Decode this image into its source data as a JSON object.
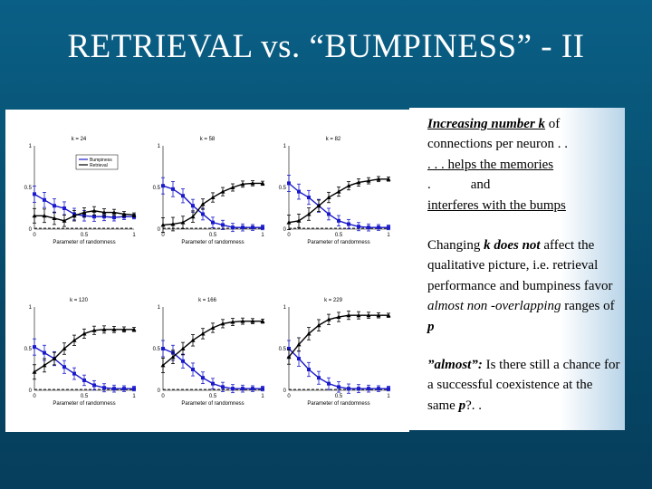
{
  "title": "RETRIEVAL vs. “BUMPINESS” - II",
  "text_panel": {
    "p1": {
      "k_line_bi": "Increasing number k",
      "k_line_rest": " of",
      "line2": "connections per neuron . .",
      "line3": ". . . helps the memories",
      "line4a": ".",
      "line4b": "and",
      "line5": "interferes with the bumps"
    },
    "p2": {
      "a": "Changing ",
      "b": "k does not",
      "c": " affect the qualitative picture, i.e. retrieval performance and bumpiness favor ",
      "d": "almost non -overlapping",
      "e": " ranges of ",
      "f": "p"
    },
    "p3": {
      "a": "”almost”:",
      "b": " Is there still a chance for a successful coexistence at the same ",
      "c": "p",
      "d": "?. ."
    }
  },
  "colors": {
    "bumpiness": "#1a1acc",
    "retrieval": "#000000",
    "background_top": "#0a5f86",
    "background_bottom": "#063e5c"
  },
  "legend": {
    "bumpiness": "Bumpiness",
    "retrieval": "Retrieval"
  },
  "chart_data": [
    {
      "type": "line",
      "title": "k = 24",
      "xlabel": "Parameter of randomness",
      "ylabel": "",
      "xlim": [
        0,
        1
      ],
      "ylim": [
        0,
        1
      ],
      "xticks": [
        "0",
        "0.5",
        "1"
      ],
      "yticks": [
        "0",
        "0.5",
        "1"
      ],
      "x": [
        0,
        0.1,
        0.2,
        0.3,
        0.4,
        0.5,
        0.6,
        0.7,
        0.8,
        0.9,
        1.0
      ],
      "series": [
        {
          "name": "Bumpiness",
          "values": [
            0.42,
            0.35,
            0.28,
            0.25,
            0.18,
            0.16,
            0.15,
            0.15,
            0.14,
            0.15,
            0.15
          ]
        },
        {
          "name": "Retrieval",
          "values": [
            0.16,
            0.16,
            0.13,
            0.1,
            0.16,
            0.2,
            0.22,
            0.2,
            0.2,
            0.18,
            0.17
          ]
        }
      ]
    },
    {
      "type": "line",
      "title": "k = 58",
      "xlabel": "Parameter of randomness",
      "ylabel": "",
      "xlim": [
        0,
        1
      ],
      "ylim": [
        0,
        1
      ],
      "xticks": [
        "0",
        "0.5",
        "1"
      ],
      "yticks": [
        "0",
        "0.5",
        "1"
      ],
      "x": [
        0,
        0.1,
        0.2,
        0.3,
        0.4,
        0.5,
        0.6,
        0.7,
        0.8,
        0.9,
        1.0
      ],
      "series": [
        {
          "name": "Bumpiness",
          "values": [
            0.52,
            0.48,
            0.4,
            0.28,
            0.18,
            0.08,
            0.05,
            0.02,
            0.02,
            0.02,
            0.02
          ]
        },
        {
          "name": "Retrieval",
          "values": [
            0.05,
            0.06,
            0.08,
            0.15,
            0.3,
            0.38,
            0.45,
            0.5,
            0.54,
            0.55,
            0.55
          ]
        }
      ]
    },
    {
      "type": "line",
      "title": "k = 82",
      "xlabel": "Parameter of randomness",
      "ylabel": "",
      "xlim": [
        0,
        1
      ],
      "ylim": [
        0,
        1
      ],
      "xticks": [
        "0",
        "0.5",
        "1"
      ],
      "yticks": [
        "0",
        "0.5",
        "1"
      ],
      "x": [
        0,
        0.1,
        0.2,
        0.3,
        0.4,
        0.5,
        0.6,
        0.7,
        0.8,
        0.9,
        1.0
      ],
      "series": [
        {
          "name": "Bumpiness",
          "values": [
            0.55,
            0.45,
            0.38,
            0.28,
            0.18,
            0.1,
            0.06,
            0.03,
            0.02,
            0.02,
            0.02
          ]
        },
        {
          "name": "Retrieval",
          "values": [
            0.08,
            0.1,
            0.18,
            0.28,
            0.38,
            0.45,
            0.52,
            0.56,
            0.58,
            0.6,
            0.6
          ]
        }
      ]
    },
    {
      "type": "line",
      "title": "k = 120",
      "xlabel": "Parameter of randomness",
      "ylabel": "",
      "xlim": [
        0,
        1
      ],
      "ylim": [
        0,
        1
      ],
      "xticks": [
        "0",
        "0.5",
        "1"
      ],
      "yticks": [
        "0",
        "0.5",
        "1"
      ],
      "x": [
        0,
        0.1,
        0.2,
        0.3,
        0.4,
        0.5,
        0.6,
        0.7,
        0.8,
        0.9,
        1.0
      ],
      "series": [
        {
          "name": "Bumpiness",
          "values": [
            0.52,
            0.45,
            0.38,
            0.28,
            0.2,
            0.12,
            0.06,
            0.03,
            0.02,
            0.02,
            0.02
          ]
        },
        {
          "name": "Retrieval",
          "values": [
            0.22,
            0.3,
            0.38,
            0.5,
            0.6,
            0.68,
            0.72,
            0.73,
            0.73,
            0.73,
            0.73
          ]
        }
      ]
    },
    {
      "type": "line",
      "title": "k = 166",
      "xlabel": "Parameter of randomness",
      "ylabel": "",
      "xlim": [
        0,
        1
      ],
      "ylim": [
        0,
        1
      ],
      "xticks": [
        "0",
        "0.5",
        "1"
      ],
      "yticks": [
        "0",
        "0.5",
        "1"
      ],
      "x": [
        0,
        0.1,
        0.2,
        0.3,
        0.4,
        0.5,
        0.6,
        0.7,
        0.8,
        0.9,
        1.0
      ],
      "series": [
        {
          "name": "Bumpiness",
          "values": [
            0.5,
            0.45,
            0.35,
            0.25,
            0.15,
            0.08,
            0.04,
            0.02,
            0.02,
            0.02,
            0.02
          ]
        },
        {
          "name": "Retrieval",
          "values": [
            0.3,
            0.4,
            0.5,
            0.6,
            0.68,
            0.75,
            0.8,
            0.82,
            0.83,
            0.83,
            0.83
          ]
        }
      ]
    },
    {
      "type": "line",
      "title": "k = 229",
      "xlabel": "Parameter of randomness",
      "ylabel": "",
      "xlim": [
        0,
        1
      ],
      "ylim": [
        0,
        1
      ],
      "xticks": [
        "0",
        "0.5",
        "1"
      ],
      "yticks": [
        "0",
        "0.5",
        "1"
      ],
      "x": [
        0,
        0.1,
        0.2,
        0.3,
        0.4,
        0.5,
        0.6,
        0.7,
        0.8,
        0.9,
        1.0
      ],
      "series": [
        {
          "name": "Bumpiness",
          "values": [
            0.5,
            0.38,
            0.25,
            0.15,
            0.08,
            0.04,
            0.02,
            0.02,
            0.02,
            0.02,
            0.02
          ]
        },
        {
          "name": "Retrieval",
          "values": [
            0.4,
            0.55,
            0.68,
            0.78,
            0.85,
            0.88,
            0.9,
            0.9,
            0.9,
            0.9,
            0.9
          ]
        }
      ]
    }
  ]
}
